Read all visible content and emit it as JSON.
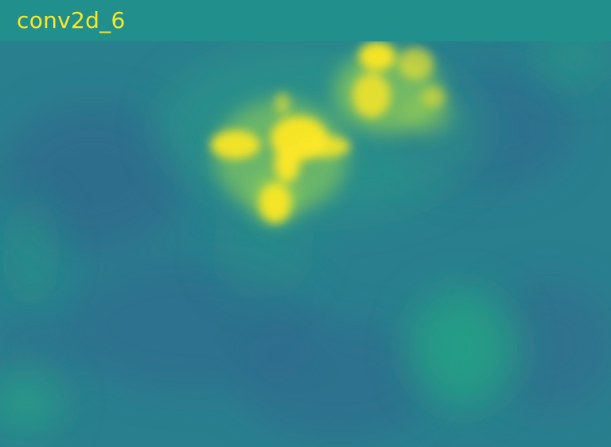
{
  "title": "conv2d_6",
  "heatmap": {
    "colormap": "viridis",
    "background_color": "#21908d",
    "base_color": "#2a7f8e",
    "low_color": "#31668e",
    "mid_color": "#24a884",
    "high_color": "#a3d94d",
    "peak_color": "#fde725"
  }
}
